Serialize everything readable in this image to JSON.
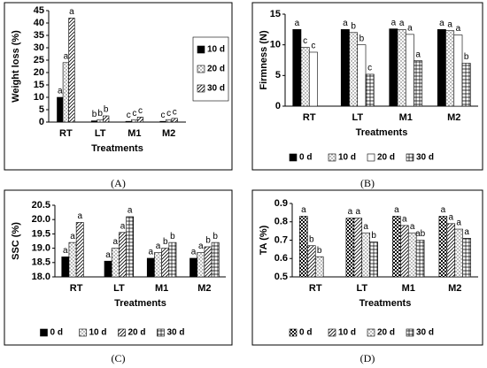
{
  "chart_data": [
    {
      "type": "bar",
      "caption": "(A)",
      "ylabel": "Weight loss (%)",
      "xlabel": "Treatments",
      "categories": [
        "RT",
        "LT",
        "M1",
        "M2"
      ],
      "ylim": [
        0,
        45
      ],
      "yticks": [
        0,
        5,
        10,
        15,
        20,
        25,
        30,
        35,
        40,
        45
      ],
      "legend": "right",
      "series": [
        {
          "name": "10 d",
          "color": "#000000",
          "pattern": "solid",
          "values": [
            10,
            0.5,
            0.3,
            0.3
          ],
          "letters": [
            "a",
            "b",
            "c",
            "c"
          ]
        },
        {
          "name": "20 d",
          "color": "#555555",
          "pattern": "dots",
          "values": [
            24,
            1,
            1,
            1
          ],
          "letters": [
            "a",
            "b",
            "c",
            "c"
          ]
        },
        {
          "name": "30 d",
          "color": "#000000",
          "pattern": "hatch",
          "values": [
            42,
            2.5,
            2,
            1.5
          ],
          "letters": [
            "a",
            "b",
            "c",
            "c"
          ]
        }
      ]
    },
    {
      "type": "bar",
      "caption": "(B)",
      "ylabel": "Firmness (N)",
      "xlabel": "Treatments",
      "categories": [
        "RT",
        "LT",
        "M1",
        "M2"
      ],
      "ylim": [
        0,
        15
      ],
      "yticks": [
        0,
        5,
        10,
        15
      ],
      "legend": "bottom",
      "series": [
        {
          "name": "0 d",
          "color": "#000000",
          "pattern": "solid",
          "values": [
            12.5,
            12.5,
            12.6,
            12.5
          ],
          "letters": [
            "a",
            "a",
            "a",
            "a"
          ]
        },
        {
          "name": "10 d",
          "color": "#555555",
          "pattern": "dots",
          "values": [
            9.6,
            12,
            12.5,
            12.3
          ],
          "letters": [
            "c",
            "b",
            "a",
            "a"
          ]
        },
        {
          "name": "20 d",
          "color": "#000000",
          "pattern": "none",
          "values": [
            8.8,
            10,
            11.7,
            11.6
          ],
          "letters": [
            "c",
            "b",
            "a",
            "a"
          ]
        },
        {
          "name": "30 d",
          "color": "#000000",
          "pattern": "grid",
          "values": [
            null,
            5.2,
            7.4,
            7
          ],
          "letters": [
            null,
            "c",
            "a",
            "b"
          ]
        }
      ]
    },
    {
      "type": "bar",
      "caption": "(C)",
      "ylabel": "SSC (%)",
      "xlabel": "Treatments",
      "categories": [
        "RT",
        "LT",
        "M1",
        "M2"
      ],
      "ylim": [
        18,
        20.5
      ],
      "yticks": [
        {
          "value": 18,
          "label": "18.0"
        },
        18.5,
        {
          "value": 19,
          "label": "19.0"
        },
        19.5,
        {
          "value": 20,
          "label": "20.0"
        },
        20.5
      ],
      "legend": "bottom",
      "series": [
        {
          "name": "0 d",
          "color": "#000000",
          "pattern": "solid",
          "values": [
            18.7,
            18.55,
            18.65,
            18.65
          ],
          "letters": [
            "a",
            "a",
            "a",
            "a"
          ]
        },
        {
          "name": "10 d",
          "color": "#555555",
          "pattern": "dots",
          "values": [
            19.2,
            19,
            18.85,
            18.85
          ],
          "letters": [
            "a",
            "a",
            "a",
            "a"
          ]
        },
        {
          "name": "20 d",
          "color": "#000000",
          "pattern": "hatch",
          "values": [
            19.9,
            19.55,
            19,
            19.05
          ],
          "letters": [
            "a",
            "a",
            "b",
            "b"
          ]
        },
        {
          "name": "30 d",
          "color": "#000000",
          "pattern": "grid",
          "values": [
            null,
            20.1,
            19.2,
            19.2
          ],
          "letters": [
            null,
            "a",
            "b",
            "b"
          ]
        }
      ]
    },
    {
      "type": "bar",
      "caption": "(D)",
      "ylabel": "TA (%)",
      "xlabel": "Treatments",
      "categories": [
        "RT",
        "LT",
        "M1",
        "M2"
      ],
      "ylim": [
        0.5,
        0.9
      ],
      "yticks": [
        0.5,
        0.6,
        0.7,
        0.8,
        0.9
      ],
      "legend": "bottom",
      "series": [
        {
          "name": "0 d",
          "color": "#000000",
          "pattern": "checker",
          "values": [
            0.83,
            0.82,
            0.83,
            0.83
          ],
          "letters": [
            "a",
            "a",
            "a",
            "a"
          ]
        },
        {
          "name": "10 d",
          "color": "#000000",
          "pattern": "hatch",
          "values": [
            0.67,
            0.82,
            0.78,
            0.79
          ],
          "letters": [
            "b",
            "a",
            "a",
            "a"
          ]
        },
        {
          "name": "20 d",
          "color": "#555555",
          "pattern": "dots",
          "values": [
            0.61,
            0.74,
            0.74,
            0.76
          ],
          "letters": [
            "b",
            "a",
            "a",
            "a"
          ]
        },
        {
          "name": "30 d",
          "color": "#000000",
          "pattern": "grid",
          "values": [
            null,
            0.69,
            0.7,
            0.71
          ],
          "letters": [
            null,
            "b",
            "ab",
            "a"
          ]
        }
      ]
    }
  ]
}
